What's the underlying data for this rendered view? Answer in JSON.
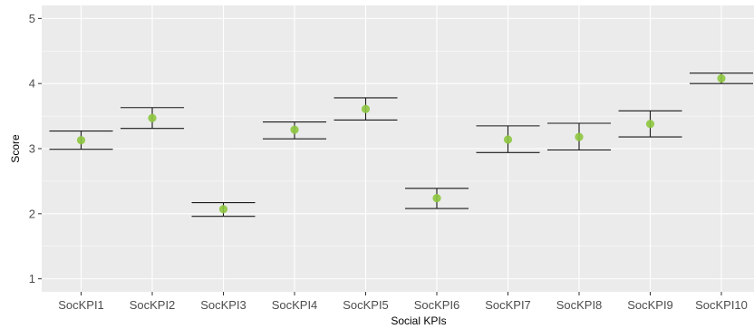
{
  "chart_data": {
    "type": "scatter",
    "xlabel": "Social KPIs",
    "ylabel": "Score",
    "ylim": [
      0.8,
      5.2
    ],
    "yticks": [
      "1",
      "2",
      "3",
      "4",
      "5"
    ],
    "grid": true,
    "legend": "none",
    "categories": [
      "SocKPI1",
      "SocKPI2",
      "SocKPI3",
      "SocKPI4",
      "SocKPI5",
      "SocKPI6",
      "SocKPI7",
      "SocKPI8",
      "SocKPI9",
      "SocKPI10"
    ],
    "series": [
      {
        "means": [
          3.13,
          3.47,
          2.07,
          3.29,
          3.61,
          2.24,
          3.14,
          3.18,
          3.38,
          4.08
        ],
        "lower": [
          2.99,
          3.31,
          1.96,
          3.15,
          3.44,
          2.08,
          2.94,
          2.98,
          3.18,
          4.0
        ],
        "upper": [
          3.27,
          3.63,
          2.17,
          3.41,
          3.78,
          2.39,
          3.35,
          3.39,
          3.58,
          4.16
        ]
      }
    ],
    "colors": {
      "panel": "#ebebeb",
      "grid_major": "#ffffff",
      "point": "#8dc63f",
      "errorbar": "#1a1a1a"
    }
  }
}
